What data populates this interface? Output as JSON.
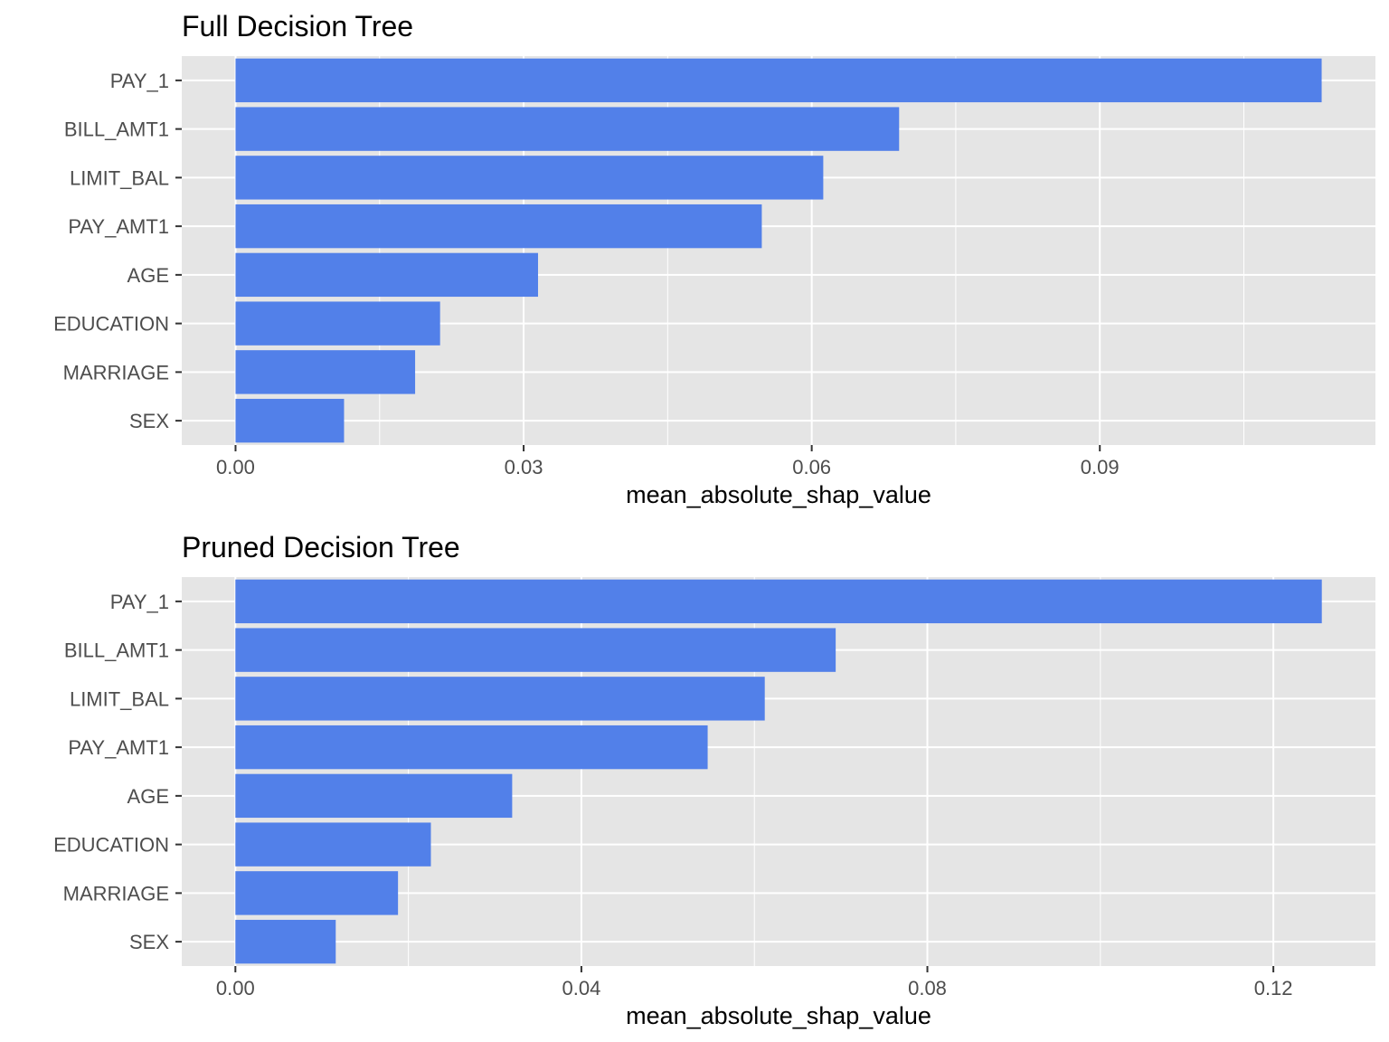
{
  "chart_data": [
    {
      "type": "bar",
      "orientation": "horizontal",
      "title": "Full Decision Tree",
      "xlabel": "mean_absolute_shap_value",
      "ylabel": "",
      "categories": [
        "PAY_1",
        "BILL_AMT1",
        "LIMIT_BAL",
        "PAY_AMT1",
        "AGE",
        "EDUCATION",
        "MARRIAGE",
        "SEX"
      ],
      "values": [
        0.1131,
        0.0691,
        0.0612,
        0.0548,
        0.0315,
        0.0213,
        0.0187,
        0.0113
      ],
      "xlim": [
        -0.0056,
        0.1187
      ],
      "xticks": [
        0.0,
        0.03,
        0.06,
        0.09
      ],
      "xtick_labels": [
        "0.00",
        "0.03",
        "0.06",
        "0.09"
      ],
      "minor_ticks": [
        0.015,
        0.045,
        0.075,
        0.105
      ],
      "bar_color": "#5280e9",
      "grid": true
    },
    {
      "type": "bar",
      "orientation": "horizontal",
      "title": "Pruned Decision Tree",
      "xlabel": "mean_absolute_shap_value",
      "ylabel": "",
      "categories": [
        "PAY_1",
        "BILL_AMT1",
        "LIMIT_BAL",
        "PAY_AMT1",
        "AGE",
        "EDUCATION",
        "MARRIAGE",
        "SEX"
      ],
      "values": [
        0.1256,
        0.0694,
        0.0612,
        0.0546,
        0.032,
        0.0226,
        0.0188,
        0.0116
      ],
      "xlim": [
        -0.0062,
        0.1318
      ],
      "xticks": [
        0.0,
        0.04,
        0.08,
        0.12
      ],
      "xtick_labels": [
        "0.00",
        "0.04",
        "0.08",
        "0.12"
      ],
      "minor_ticks": [
        0.02,
        0.06,
        0.1
      ],
      "bar_color": "#5280e9",
      "grid": true
    }
  ]
}
